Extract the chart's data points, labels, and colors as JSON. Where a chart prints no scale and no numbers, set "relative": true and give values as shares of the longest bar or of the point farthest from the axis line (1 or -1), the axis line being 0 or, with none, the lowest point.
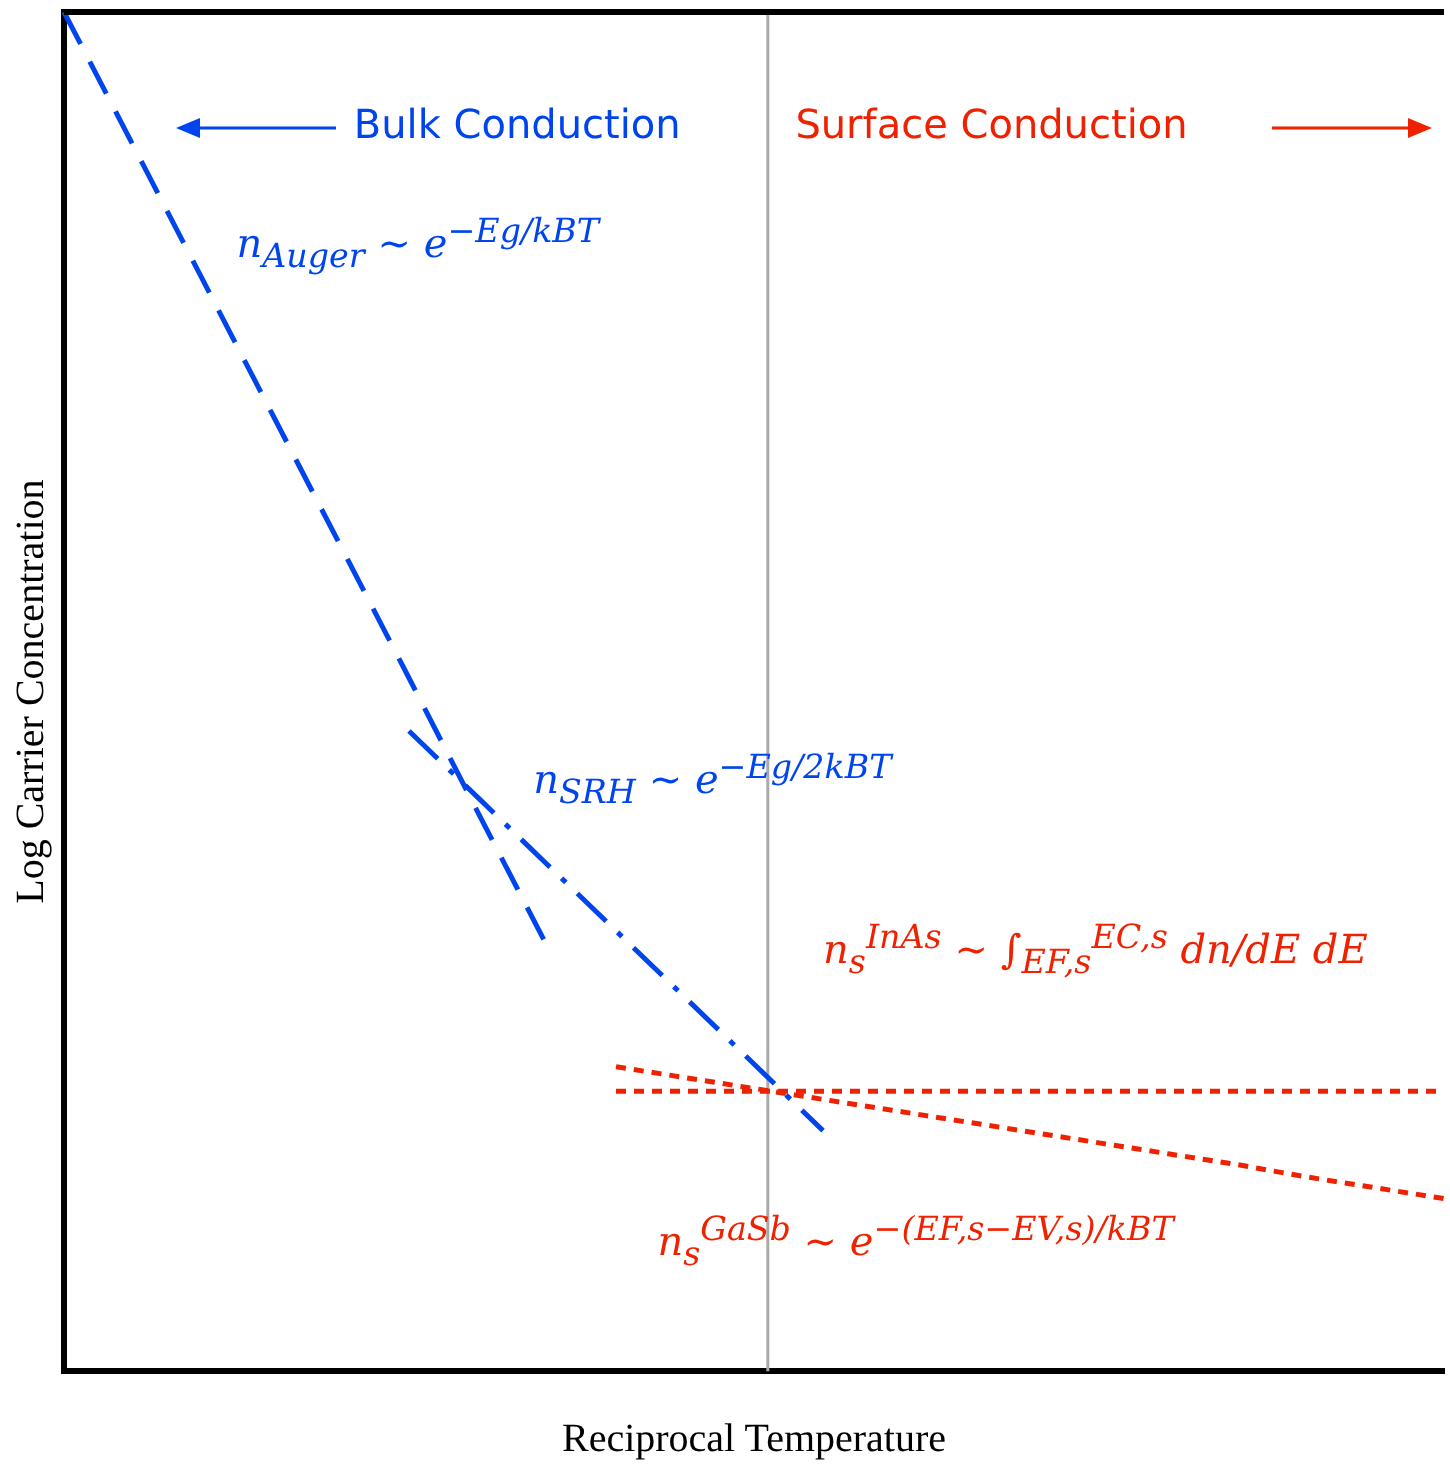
{
  "chart_data": {
    "type": "line",
    "relative": true,
    "xlabel": "Reciprocal Temperature",
    "ylabel": "Log Carrier Concentration",
    "grid": false,
    "legend": false,
    "marker": "none",
    "categories": [
      null,
      null,
      null,
      null,
      null,
      null,
      null,
      null,
      null,
      null,
      null,
      null,
      null,
      null,
      null,
      null,
      null,
      null,
      null,
      null,
      null
    ],
    "series": [
      {
        "name": "n$_{Auger}$ ∼ e$^{−Eg/kBT}$",
        "color": "#0044ee",
        "line_style": "dashed",
        "values": [
          1,
          0.902,
          0.804,
          0.706,
          0.608,
          0.51,
          0.411,
          0.313,
          null,
          null,
          null,
          null,
          null,
          null,
          null,
          null,
          null,
          null,
          null,
          null,
          null
        ]
      },
      {
        "name": "n$_{SRH}$ ∼ e$^{−Eg/2kBT}$",
        "color": "#0044ee",
        "line_style": "dashdot",
        "values": [
          null,
          null,
          null,
          null,
          null,
          0.471,
          0.422,
          0.373,
          0.324,
          0.275,
          0.226,
          0.177,
          null,
          null,
          null,
          null,
          null,
          null,
          null,
          null,
          null
        ]
      },
      {
        "name": "n$_{s}$$^{InAs}$ ∼ ∫$_{EF,s}$$^{EC,s}$ dn/dE dE",
        "color": "#ee2200",
        "line_style": "dotted",
        "values": [
          null,
          null,
          null,
          null,
          null,
          null,
          null,
          null,
          0.206,
          0.206,
          0.206,
          0.206,
          0.206,
          0.206,
          0.206,
          0.206,
          0.206,
          0.206,
          0.206,
          0.206,
          0.206
        ]
      },
      {
        "name": "n$_{s}$$^{GaSb}$ ∼ e$^{−(EF,s−EV,s)/kBT}$",
        "color": "#ee2200",
        "line_style": "dotted",
        "values": [
          null,
          null,
          null,
          null,
          null,
          null,
          null,
          null,
          0.224,
          0.216,
          0.208,
          0.2,
          0.192,
          0.184,
          0.176,
          0.168,
          0.16,
          0.152,
          0.143,
          0.135,
          0.127
        ]
      }
    ],
    "annotations": [
      "Bulk Conduction",
      "Surface Conduction"
    ]
  }
}
